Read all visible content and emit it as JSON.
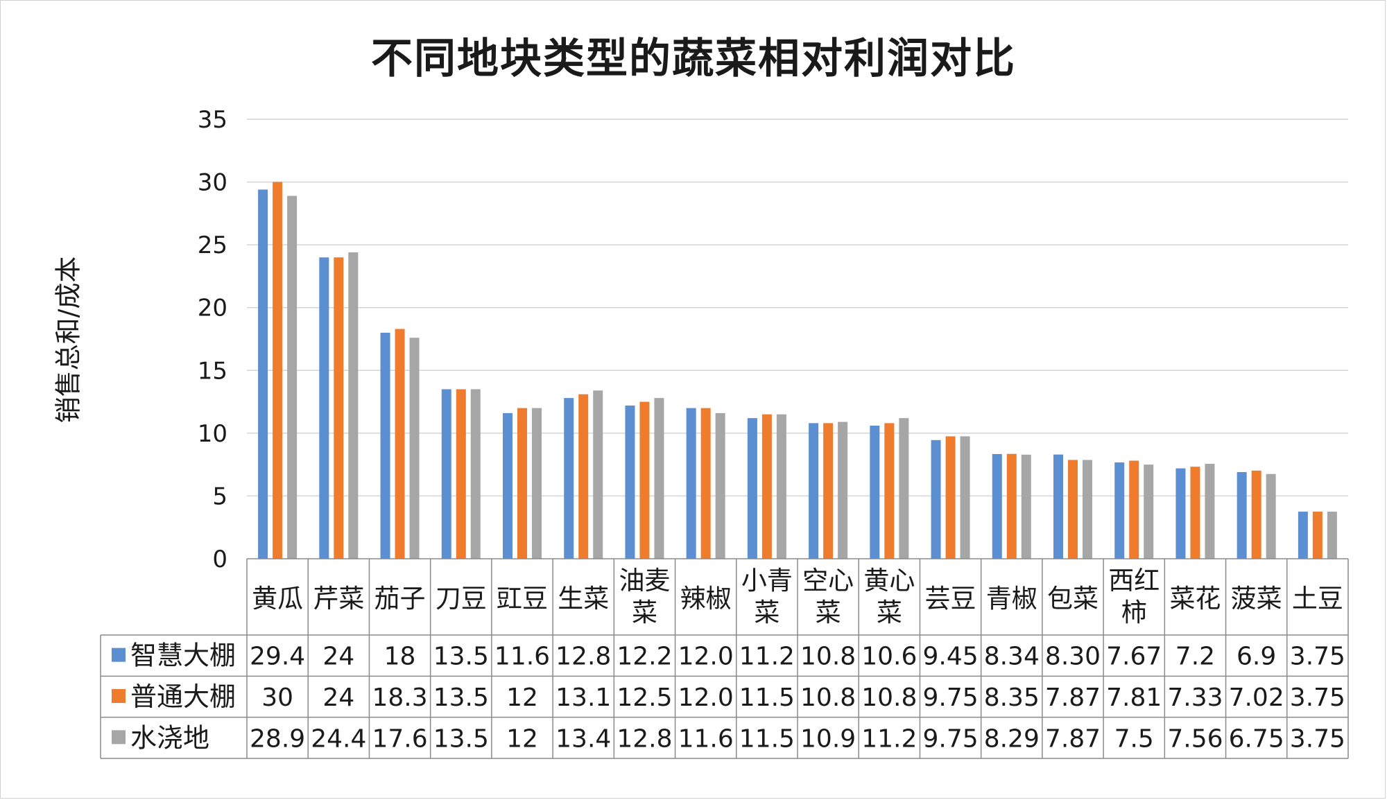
{
  "chart_data": {
    "type": "bar",
    "title": "不同地块类型的蔬菜相对利润对比",
    "ylabel": "销售总和/成本",
    "xlabel": "",
    "ylim": [
      0,
      35
    ],
    "yticks": [
      0,
      5,
      10,
      15,
      20,
      25,
      30,
      35
    ],
    "grid": true,
    "legend": "data-table",
    "categories": [
      [
        "黄瓜"
      ],
      [
        "芹菜"
      ],
      [
        "茄子"
      ],
      [
        "刀豆"
      ],
      [
        "豇豆"
      ],
      [
        "生菜"
      ],
      [
        "油麦",
        "菜"
      ],
      [
        "辣椒"
      ],
      [
        "小青",
        "菜"
      ],
      [
        "空心",
        "菜"
      ],
      [
        "黄心",
        "菜"
      ],
      [
        "芸豆"
      ],
      [
        "青椒"
      ],
      [
        "包菜"
      ],
      [
        "西红",
        "柿"
      ],
      [
        "菜花"
      ],
      [
        "菠菜"
      ],
      [
        "土豆"
      ]
    ],
    "series": [
      {
        "name": "智慧大棚",
        "color": "#5b8fd1",
        "values": [
          29.4,
          24,
          18,
          13.5,
          11.6,
          12.8,
          12.2,
          12.0,
          11.2,
          10.8,
          10.6,
          9.45,
          8.34,
          8.3,
          7.67,
          7.2,
          6.9,
          3.75
        ],
        "labels": [
          "29.4",
          "24",
          "18",
          "13.5",
          "11.6",
          "12.8",
          "12.2",
          "12.0",
          "11.2",
          "10.8",
          "10.6",
          "9.45",
          "8.34",
          "8.30",
          "7.67",
          "7.2",
          "6.9",
          "3.75"
        ]
      },
      {
        "name": "普通大棚",
        "color": "#ef7b2d",
        "values": [
          30,
          24,
          18.3,
          13.5,
          12,
          13.1,
          12.5,
          12.0,
          11.5,
          10.8,
          10.8,
          9.75,
          8.35,
          7.87,
          7.81,
          7.33,
          7.02,
          3.75
        ],
        "labels": [
          "30",
          "24",
          "18.3",
          "13.5",
          "12",
          "13.1",
          "12.5",
          "12.0",
          "11.5",
          "10.8",
          "10.8",
          "9.75",
          "8.35",
          "7.87",
          "7.81",
          "7.33",
          "7.02",
          "3.75"
        ]
      },
      {
        "name": "水浇地",
        "color": "#a6a6a6",
        "values": [
          28.9,
          24.4,
          17.6,
          13.5,
          12,
          13.4,
          12.8,
          11.6,
          11.5,
          10.9,
          11.2,
          9.75,
          8.29,
          7.87,
          7.5,
          7.56,
          6.75,
          3.75
        ],
        "labels": [
          "28.9",
          "24.4",
          "17.6",
          "13.5",
          "12",
          "13.4",
          "12.8",
          "11.6",
          "11.5",
          "10.9",
          "11.2",
          "9.75",
          "8.29",
          "7.87",
          "7.5",
          "7.56",
          "6.75",
          "3.75"
        ]
      }
    ]
  }
}
